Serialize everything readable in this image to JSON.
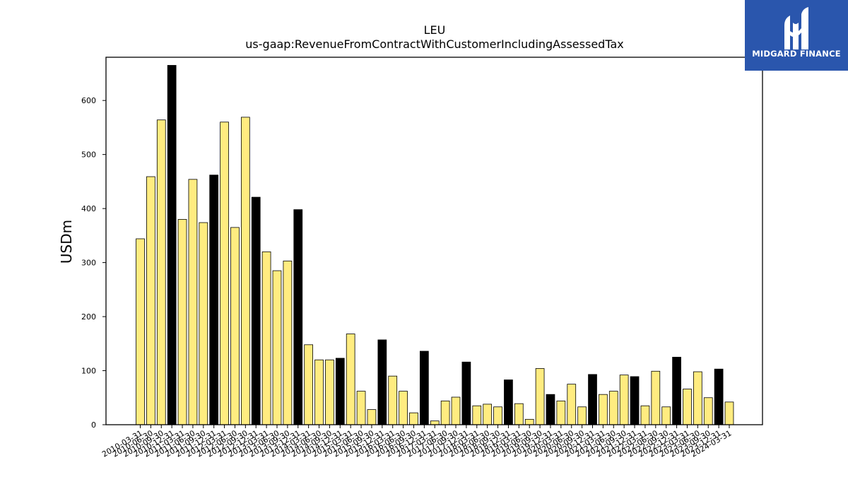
{
  "chart_data": {
    "type": "bar",
    "title": "LEU",
    "subtitle": "us-gaap:RevenueFromContractWithCustomerIncludingAssessedTax",
    "xlabel": "",
    "ylabel": "USDm",
    "ylim": [
      0,
      680
    ],
    "yticks": [
      0,
      100,
      200,
      300,
      400,
      500,
      600
    ],
    "grid": false,
    "colors": {
      "quarter": "#ffec80",
      "annual": "#000000",
      "edge": "#000000"
    },
    "categories": [
      "2010-03-31",
      "2010-06-30",
      "2010-09-30",
      "2010-12-31",
      "2011-03-31",
      "2011-06-30",
      "2011-09-30",
      "2011-12-31",
      "2012-03-31",
      "2012-06-30",
      "2012-09-30",
      "2012-12-31",
      "2013-03-31",
      "2013-06-30",
      "2013-09-30",
      "2013-12-31",
      "2014-03-31",
      "2014-06-30",
      "2014-09-30",
      "2014-12-31",
      "2015-03-31",
      "2015-06-30",
      "2015-09-30",
      "2015-12-31",
      "2016-03-31",
      "2016-06-30",
      "2016-09-30",
      "2016-12-31",
      "2017-03-31",
      "2017-06-30",
      "2017-09-30",
      "2017-12-31",
      "2018-03-31",
      "2018-06-30",
      "2018-09-30",
      "2018-12-31",
      "2019-03-31",
      "2019-06-30",
      "2019-09-30",
      "2019-12-31",
      "2020-03-31",
      "2020-06-30",
      "2020-09-30",
      "2020-12-31",
      "2021-03-31",
      "2021-06-30",
      "2021-09-30",
      "2021-12-31",
      "2022-03-31",
      "2022-06-30",
      "2022-09-30",
      "2022-12-31",
      "2023-03-31",
      "2023-06-30",
      "2023-09-30",
      "2023-12-31",
      "2024-03-31"
    ],
    "values": [
      344,
      459,
      564,
      665,
      380,
      454,
      374,
      462,
      560,
      365,
      569,
      421,
      320,
      285,
      303,
      398,
      148,
      120,
      120,
      123,
      168,
      62,
      28,
      157,
      90,
      62,
      22,
      136,
      7,
      44,
      51,
      116,
      35,
      38,
      33,
      83,
      39,
      10,
      104,
      56,
      44,
      75,
      33,
      93,
      56,
      62,
      92,
      89,
      35,
      99,
      33,
      125,
      66,
      98,
      50,
      103,
      42
    ],
    "annual": [
      false,
      false,
      false,
      true,
      false,
      false,
      false,
      true,
      false,
      false,
      false,
      true,
      false,
      false,
      false,
      true,
      false,
      false,
      false,
      true,
      false,
      false,
      false,
      true,
      false,
      false,
      false,
      true,
      false,
      false,
      false,
      true,
      false,
      false,
      false,
      true,
      false,
      false,
      false,
      true,
      false,
      false,
      false,
      true,
      false,
      false,
      false,
      true,
      false,
      false,
      false,
      true,
      false,
      false,
      false,
      true,
      false
    ]
  },
  "logo": {
    "brand": "MIDGARD FINANCE",
    "icon": "midgard-logo-icon",
    "background": "#2a56ad"
  }
}
